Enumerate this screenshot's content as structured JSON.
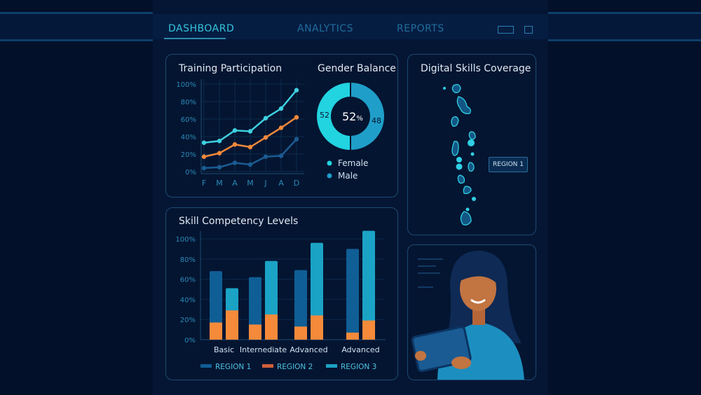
{
  "nav": {
    "tabs": [
      {
        "label": "DASHBOARD",
        "active": true
      },
      {
        "label": "ANALYTICS",
        "active": false
      },
      {
        "label": "REPORTS",
        "active": false
      }
    ],
    "window_icons": [
      "maximize-icon",
      "restore-icon"
    ]
  },
  "training": {
    "title": "Training Participation"
  },
  "gender": {
    "title": "Gender Balance",
    "center_value": "52",
    "center_unit": "%",
    "female_value": "52",
    "male_value": "48",
    "legend": [
      "Female",
      "Male"
    ],
    "colors": {
      "female": "#22d3e0",
      "male": "#1f9ec9"
    }
  },
  "skills": {
    "title": "Skill Competency Levels"
  },
  "map": {
    "title": "Digital Skills Coverage",
    "region_label": "REGION 1"
  },
  "chart_data": [
    {
      "type": "line",
      "title": "Training Participation",
      "categories": [
        "F",
        "M",
        "A",
        "M",
        "J",
        "A",
        "D"
      ],
      "yticks": [
        "0%",
        "20%",
        "40%",
        "60%",
        "80%",
        "100%"
      ],
      "ylim": [
        0,
        100
      ],
      "grid": true,
      "series": [
        {
          "color": "#3fd0e0",
          "values": [
            33,
            35,
            47,
            46,
            61,
            72,
            93
          ]
        },
        {
          "color": "#f58a3a",
          "values": [
            17,
            21,
            31,
            28,
            39,
            50,
            62
          ]
        },
        {
          "color": "#1b5c92",
          "values": [
            4,
            5,
            10,
            8,
            17,
            18,
            37
          ]
        }
      ]
    },
    {
      "type": "bar",
      "title": "Skill Competency Levels",
      "categories": [
        "Basic",
        "Internediate",
        "Advanced",
        "Advanced"
      ],
      "yticks": [
        "0%",
        "20%",
        "40%",
        "60%",
        "80%",
        "100%"
      ],
      "ylim": [
        0,
        100
      ],
      "legend_position": "bottom",
      "series": [
        {
          "name": "REGION 1",
          "color": "#0f5e95",
          "values": [
            68,
            62,
            69,
            90
          ]
        },
        {
          "name": "REGION 2",
          "color": "#f58a3a",
          "values_under_region1": [
            17,
            15,
            13,
            7
          ],
          "values_under_region3": [
            29,
            25,
            24,
            19
          ]
        },
        {
          "name": "REGION 3",
          "color": "#1ba3c6",
          "values": [
            51,
            78,
            96,
            108
          ]
        }
      ]
    }
  ]
}
